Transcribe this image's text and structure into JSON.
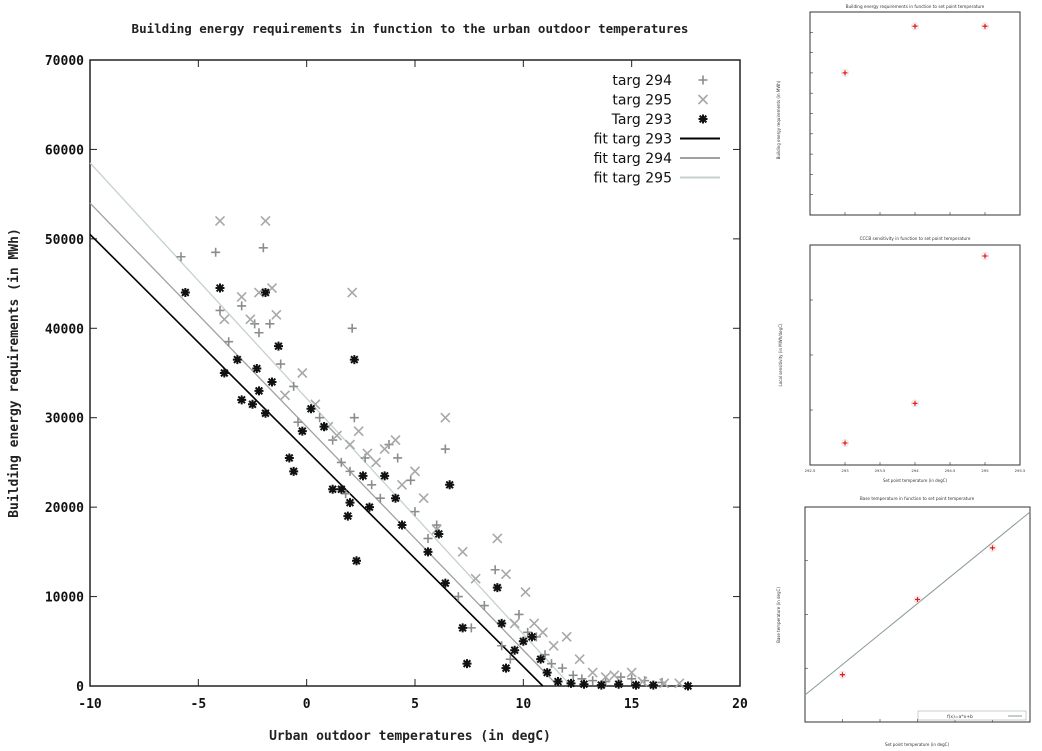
{
  "chart_data": [
    {
      "type": "scatter",
      "title": "Building energy requirements in function to the urban outdoor temperatures",
      "xlabel": "Urban outdoor temperatures (in degC)",
      "ylabel": "Building energy requirements (in MWh)",
      "xlim": [
        -10,
        20
      ],
      "ylim": [
        0,
        70000
      ],
      "xticks": [
        "-10",
        "-5",
        "0",
        "5",
        "10",
        "15",
        "20"
      ],
      "yticks": [
        "0",
        "10000",
        "20000",
        "30000",
        "40000",
        "50000",
        "60000",
        "70000"
      ],
      "legend_position": "top-right",
      "series": [
        {
          "name": "targ 294",
          "marker": "plus",
          "color": "#8c8c8c",
          "points": [
            [
              -5.8,
              48000
            ],
            [
              -4.2,
              48500
            ],
            [
              -4,
              42000
            ],
            [
              -3.6,
              38500
            ],
            [
              -3,
              42500
            ],
            [
              -2.4,
              40500
            ],
            [
              -2.2,
              39500
            ],
            [
              -2,
              49000
            ],
            [
              -1.7,
              40500
            ],
            [
              -1.2,
              36000
            ],
            [
              -0.6,
              33500
            ],
            [
              -0.4,
              29500
            ],
            [
              0.6,
              30000
            ],
            [
              1.2,
              27500
            ],
            [
              1.6,
              25000
            ],
            [
              1.8,
              21500
            ],
            [
              2,
              24000
            ],
            [
              2.1,
              40000
            ],
            [
              2.2,
              30000
            ],
            [
              2.7,
              25500
            ],
            [
              3,
              22500
            ],
            [
              3.4,
              21000
            ],
            [
              3.8,
              27000
            ],
            [
              4.2,
              25500
            ],
            [
              4.8,
              23000
            ],
            [
              5,
              19500
            ],
            [
              5.6,
              16500
            ],
            [
              6,
              18000
            ],
            [
              6.4,
              26500
            ],
            [
              6.6,
              22500
            ],
            [
              7,
              10000
            ],
            [
              7.6,
              6500
            ],
            [
              8.2,
              9000
            ],
            [
              8.7,
              13000
            ],
            [
              9,
              4500
            ],
            [
              9.4,
              3000
            ],
            [
              9.8,
              8000
            ],
            [
              10.2,
              6000
            ],
            [
              10.6,
              5500
            ],
            [
              11,
              3500
            ],
            [
              11.3,
              2500
            ],
            [
              11.8,
              2000
            ],
            [
              12.3,
              1200
            ],
            [
              12.7,
              800
            ],
            [
              13.2,
              600
            ],
            [
              13.8,
              500
            ],
            [
              14.5,
              1000
            ],
            [
              15,
              800
            ],
            [
              15.6,
              600
            ],
            [
              16.4,
              400
            ]
          ]
        },
        {
          "name": "targ 295",
          "marker": "x",
          "color": "#a8a8a8",
          "points": [
            [
              -4,
              52000
            ],
            [
              -3.8,
              41000
            ],
            [
              -3,
              43500
            ],
            [
              -2.6,
              41000
            ],
            [
              -2.2,
              44000
            ],
            [
              -1.9,
              52000
            ],
            [
              -1.6,
              44500
            ],
            [
              -1.4,
              41500
            ],
            [
              -1,
              32500
            ],
            [
              -0.2,
              35000
            ],
            [
              0.4,
              31500
            ],
            [
              1,
              29000
            ],
            [
              1.4,
              28000
            ],
            [
              2,
              27000
            ],
            [
              2.1,
              44000
            ],
            [
              2.4,
              28500
            ],
            [
              2.8,
              26000
            ],
            [
              3.2,
              25000
            ],
            [
              3.6,
              26500
            ],
            [
              4.1,
              27500
            ],
            [
              4.4,
              22500
            ],
            [
              5,
              24000
            ],
            [
              5.4,
              21000
            ],
            [
              6,
              17500
            ],
            [
              6.4,
              30000
            ],
            [
              7.2,
              15000
            ],
            [
              7.8,
              12000
            ],
            [
              8.8,
              16500
            ],
            [
              9.2,
              12500
            ],
            [
              9.6,
              7000
            ],
            [
              10.1,
              10500
            ],
            [
              10.5,
              7000
            ],
            [
              10.9,
              6000
            ],
            [
              11.4,
              4500
            ],
            [
              12,
              5500
            ],
            [
              12.6,
              3000
            ],
            [
              13.2,
              1500
            ],
            [
              13.8,
              1000
            ],
            [
              14.2,
              1200
            ],
            [
              15,
              1500
            ],
            [
              15.5,
              500
            ],
            [
              16.5,
              300
            ],
            [
              17.2,
              300
            ]
          ]
        },
        {
          "name": "Targ 293",
          "marker": "star",
          "color": "#111111",
          "points": [
            [
              -5.6,
              44000
            ],
            [
              -4,
              44500
            ],
            [
              -3.8,
              35000
            ],
            [
              -3.2,
              36500
            ],
            [
              -3,
              32000
            ],
            [
              -2.5,
              31500
            ],
            [
              -2.3,
              35500
            ],
            [
              -2.2,
              33000
            ],
            [
              -1.9,
              30500
            ],
            [
              -1.9,
              44000
            ],
            [
              -1.6,
              34000
            ],
            [
              -1.3,
              38000
            ],
            [
              -0.8,
              25500
            ],
            [
              -0.6,
              24000
            ],
            [
              -0.2,
              28500
            ],
            [
              0.2,
              31000
            ],
            [
              0.8,
              29000
            ],
            [
              1.2,
              22000
            ],
            [
              1.6,
              22000
            ],
            [
              1.9,
              19000
            ],
            [
              2,
              20500
            ],
            [
              2.2,
              36500
            ],
            [
              2.3,
              14000
            ],
            [
              2.6,
              23500
            ],
            [
              2.9,
              20000
            ],
            [
              3.6,
              23500
            ],
            [
              4.1,
              21000
            ],
            [
              4.4,
              18000
            ],
            [
              5.6,
              15000
            ],
            [
              6.1,
              17000
            ],
            [
              6.4,
              11500
            ],
            [
              6.6,
              22500
            ],
            [
              7.2,
              6500
            ],
            [
              7.4,
              2500
            ],
            [
              8.8,
              11000
            ],
            [
              9,
              7000
            ],
            [
              9.2,
              2000
            ],
            [
              9.6,
              4000
            ],
            [
              10,
              5000
            ],
            [
              10.4,
              5500
            ],
            [
              10.8,
              3000
            ],
            [
              11.1,
              1500
            ],
            [
              11.6,
              500
            ],
            [
              12.2,
              300
            ],
            [
              12.8,
              200
            ],
            [
              13.6,
              100
            ],
            [
              14.4,
              200
            ],
            [
              15.2,
              100
            ],
            [
              16,
              100
            ],
            [
              17.6,
              0
            ]
          ]
        }
      ],
      "fits": [
        {
          "name": "fit targ 293",
          "color": "#000000",
          "x": [
            -10,
            10.9
          ],
          "y": [
            50500,
            0
          ]
        },
        {
          "name": "fit targ 294",
          "color": "#a0a0a0",
          "x": [
            -10,
            11.6
          ],
          "y": [
            54000,
            0
          ]
        },
        {
          "name": "fit targ 295",
          "color": "#c4d0d0",
          "x": [
            -10,
            12.2
          ],
          "y": [
            58500,
            0
          ]
        }
      ]
    },
    {
      "type": "scatter",
      "title": "Building energy requirements in function to set point temperature",
      "xlabel": "",
      "ylabel": "Building energy requirements (in MWh)",
      "color": "#e02020",
      "x": [
        293,
        294,
        295
      ],
      "y": [
        0.7,
        0.93,
        0.93
      ]
    },
    {
      "type": "scatter",
      "title": "CCCB sensitivity in function to set point temperature",
      "xlabel": "Set point temperature (in degC)",
      "ylabel": "Local sensitivity (in MWh/degC)",
      "color": "#e02020",
      "x": [
        293,
        294,
        295
      ],
      "y": [
        0.1,
        0.28,
        0.95
      ],
      "xticks": [
        "292.5",
        "293",
        "293.5",
        "294",
        "294.5",
        "295",
        "295.5"
      ]
    },
    {
      "type": "line",
      "title": "Base temperature in function to set point temperature",
      "xlabel": "Set point temperature (in degC)",
      "ylabel": "Base temperature (in degC)",
      "color": "#e02020",
      "x": [
        293,
        294,
        295
      ],
      "y": [
        0.22,
        0.57,
        0.81
      ],
      "fit_label": "f(x)=a*x+b"
    }
  ]
}
